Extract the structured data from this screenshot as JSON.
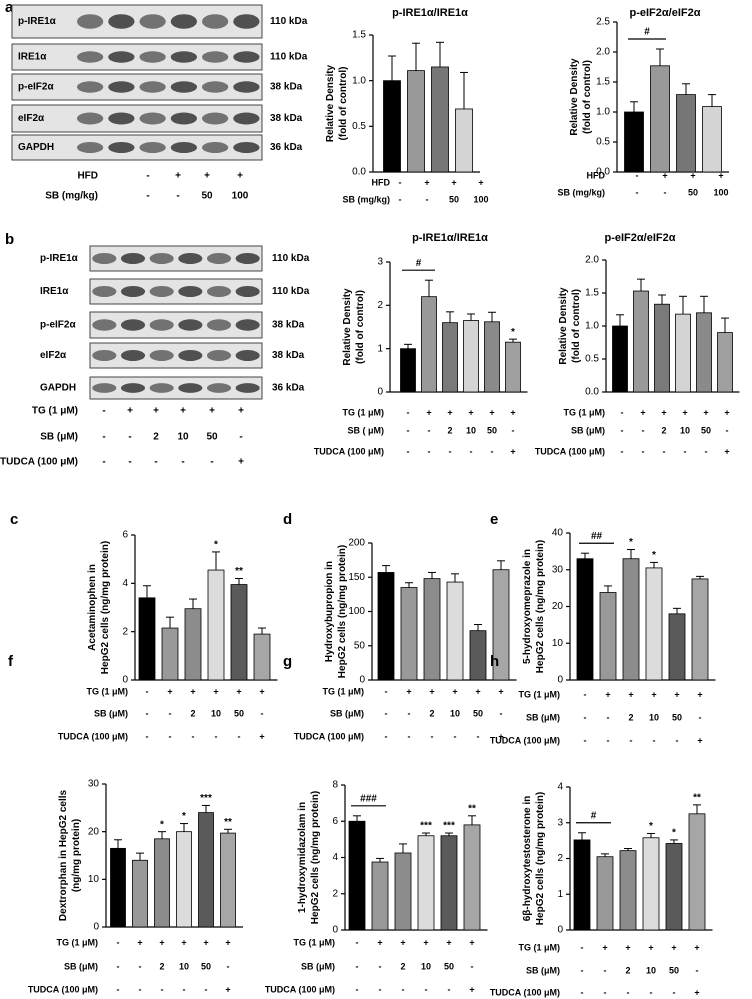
{
  "blots": [
    {
      "letter": "a",
      "rows": [
        {
          "label": "p-IRE1α",
          "size": "110 kDa"
        },
        {
          "label": "IRE1α",
          "size": "110 kDa"
        },
        {
          "label": "p-eIF2α",
          "size": "38 kDa"
        },
        {
          "label": "eIF2α",
          "size": "38 kDa"
        },
        {
          "label": "GAPDH",
          "size": "36 kDa"
        }
      ],
      "conditions": [
        {
          "label": "HFD",
          "values": [
            "-",
            "+",
            "+",
            "+"
          ]
        },
        {
          "label": "SB (mg/kg)",
          "values": [
            "-",
            "-",
            "50",
            "100"
          ]
        }
      ]
    },
    {
      "letter": "b",
      "rows": [
        {
          "label": "p-IRE1α",
          "size": "110 kDa"
        },
        {
          "label": "IRE1α",
          "size": "110 kDa"
        },
        {
          "label": "p-eIF2α",
          "size": "38 kDa"
        },
        {
          "label": "eIF2α",
          "size": "38 kDa"
        },
        {
          "label": "GAPDH",
          "size": "36 kDa"
        }
      ],
      "conditions": [
        {
          "label": "TG (1 μM)",
          "values": [
            "-",
            "+",
            "+",
            "+",
            "+",
            "+"
          ]
        },
        {
          "label": "SB (μM)",
          "values": [
            "-",
            "-",
            "2",
            "10",
            "50",
            "-"
          ]
        },
        {
          "label": "TUDCA (100 μM)",
          "values": [
            "-",
            "-",
            "-",
            "-",
            "-",
            "+"
          ]
        }
      ]
    }
  ],
  "chart_data": [
    {
      "type": "bar",
      "title": "p-IRE1α/IRE1α",
      "ylabel": [
        "Relative Density",
        "(fold of control)"
      ],
      "values": [
        1.0,
        1.11,
        1.15,
        0.69
      ],
      "errors": [
        0.27,
        0.3,
        0.27,
        0.4
      ],
      "colors": [
        "#000000",
        "#999999",
        "#777777",
        "#d4d4d4"
      ],
      "ylim": [
        0,
        1.5
      ],
      "yticks": [
        {
          "value": 0,
          "label": "0.0"
        },
        0.5,
        {
          "value": 1,
          "label": "1.0"
        },
        1.5
      ],
      "conditions": [
        {
          "label": "HFD",
          "values": [
            "-",
            "+",
            "+",
            "+"
          ]
        },
        {
          "label": "SB (mg/kg)",
          "values": [
            "-",
            "-",
            "50",
            "100"
          ]
        }
      ]
    },
    {
      "type": "bar",
      "title": "p-eIF2α/eIF2α",
      "ylabel": [
        "Relative Density",
        "(fold of control)"
      ],
      "values": [
        1.0,
        1.77,
        1.29,
        1.09
      ],
      "errors": [
        0.17,
        0.28,
        0.18,
        0.2
      ],
      "colors": [
        "#000000",
        "#999999",
        "#777777",
        "#d4d4d4"
      ],
      "ylim": [
        0,
        2.5
      ],
      "yticks": [
        {
          "value": 0,
          "label": "0.0"
        },
        0.5,
        {
          "value": 1,
          "label": "1.0"
        },
        1.5,
        {
          "value": 2,
          "label": "2.0"
        },
        2.5
      ],
      "bracket": "#",
      "conditions": [
        {
          "label": "HFD",
          "values": [
            "-",
            "+",
            "+",
            "+"
          ]
        },
        {
          "label": "SB (mg/kg)",
          "values": [
            "-",
            "-",
            "50",
            "100"
          ]
        }
      ]
    },
    {
      "type": "bar",
      "title": "p-IRE1α/IRE1α",
      "ylabel": [
        "Relative Density",
        "(fold of control)"
      ],
      "values": [
        1.0,
        2.2,
        1.6,
        1.65,
        1.62,
        1.15
      ],
      "errors": [
        0.1,
        0.38,
        0.25,
        0.15,
        0.22,
        0.07
      ],
      "colors": [
        "#000000",
        "#999999",
        "#7a7a7a",
        "#d4d4d4",
        "#8a8a8a",
        "#a0a0a0"
      ],
      "ylim": [
        0,
        3
      ],
      "yticks": [
        0,
        1,
        2,
        3
      ],
      "bracket": "#",
      "marks": [
        null,
        null,
        null,
        null,
        null,
        "*"
      ],
      "conditions": [
        {
          "label": "TG (1 μM)",
          "values": [
            "-",
            "+",
            "+",
            "+",
            "+",
            "+"
          ]
        },
        {
          "label": "SB ( μM)",
          "values": [
            "-",
            "-",
            "2",
            "10",
            "50",
            "-"
          ]
        },
        {
          "label": "TUDCA (100 μM)",
          "values": [
            "-",
            "-",
            "-",
            "-",
            "-",
            "+"
          ]
        }
      ]
    },
    {
      "type": "bar",
      "title": "p-eIF2α/eIF2α",
      "ylabel": [
        "Relative Density",
        "(fold of control)"
      ],
      "values": [
        1.0,
        1.53,
        1.33,
        1.18,
        1.2,
        0.9
      ],
      "errors": [
        0.17,
        0.18,
        0.14,
        0.27,
        0.25,
        0.22
      ],
      "colors": [
        "#000000",
        "#999999",
        "#7a7a7a",
        "#d4d4d4",
        "#8a8a8a",
        "#a0a0a0"
      ],
      "ylim": [
        0,
        2
      ],
      "yticks": [
        {
          "value": 0,
          "label": "0.0"
        },
        0.5,
        {
          "value": 1,
          "label": "1.0"
        },
        1.5,
        {
          "value": 2,
          "label": "2.0"
        }
      ],
      "conditions": [
        {
          "label": "TG (1 μM)",
          "values": [
            "-",
            "+",
            "+",
            "+",
            "+",
            "+"
          ]
        },
        {
          "label": "SB (μM)",
          "values": [
            "-",
            "-",
            "2",
            "10",
            "50",
            "-"
          ]
        },
        {
          "label": "TUDCA (100 μM)",
          "values": [
            "-",
            "-",
            "-",
            "-",
            "-",
            "+"
          ]
        }
      ]
    },
    {
      "type": "bar",
      "panel": "c",
      "ylabel": [
        "Acetaminophen in",
        "HepG2 cells (ng/mg protein)"
      ],
      "values": [
        3.4,
        2.15,
        2.95,
        4.55,
        3.95,
        1.9
      ],
      "errors": [
        0.5,
        0.45,
        0.4,
        0.75,
        0.25,
        0.25
      ],
      "colors": [
        "#000000",
        "#999999",
        "#8c8c8c",
        "#dcdcdc",
        "#5a5a5a",
        "#a6a6a6"
      ],
      "ylim": [
        0,
        6
      ],
      "yticks": [
        0,
        2,
        4,
        6
      ],
      "marks": [
        null,
        null,
        null,
        "*",
        "**",
        null
      ],
      "conditions": [
        {
          "label": "TG (1 μM)",
          "values": [
            "-",
            "+",
            "+",
            "+",
            "+",
            "+"
          ]
        },
        {
          "label": "SB (μM)",
          "values": [
            "-",
            "-",
            "2",
            "10",
            "50",
            "-"
          ]
        },
        {
          "label": "TUDCA (100 μM)",
          "values": [
            "-",
            "-",
            "-",
            "-",
            "-",
            "+"
          ]
        }
      ]
    },
    {
      "type": "bar",
      "panel": "d",
      "ylabel": [
        "Hydroxybupropion in",
        "HepG2 cells (ng/mg protein)"
      ],
      "values": [
        157,
        135,
        148,
        143,
        72,
        161
      ],
      "errors": [
        10,
        7,
        9,
        12,
        9,
        13
      ],
      "colors": [
        "#000000",
        "#999999",
        "#8c8c8c",
        "#dcdcdc",
        "#5a5a5a",
        "#a6a6a6"
      ],
      "ylim": [
        0,
        200
      ],
      "yticks": [
        0,
        50,
        100,
        150,
        200
      ],
      "conditions": [
        {
          "label": "TG (1 μM)",
          "values": [
            "-",
            "+",
            "+",
            "+",
            "+",
            "+"
          ]
        },
        {
          "label": "SB (μM)",
          "values": [
            "-",
            "-",
            "2",
            "10",
            "50",
            "-"
          ]
        },
        {
          "label": "TUDCA (100 μM)",
          "values": [
            "-",
            "-",
            "-",
            "-",
            "-",
            "+"
          ]
        }
      ]
    },
    {
      "type": "bar",
      "panel": "e",
      "ylabel": [
        "5-hydroxyomeprazole in",
        "HepG2 cells (ng/mg protein)"
      ],
      "values": [
        33,
        23.8,
        33,
        30.5,
        18,
        27.5
      ],
      "errors": [
        1.5,
        1.8,
        2.5,
        1.5,
        1.5,
        0.7
      ],
      "colors": [
        "#000000",
        "#999999",
        "#8c8c8c",
        "#dcdcdc",
        "#5a5a5a",
        "#a6a6a6"
      ],
      "ylim": [
        0,
        40
      ],
      "yticks": [
        0,
        10,
        20,
        30,
        40
      ],
      "bracket": "##",
      "marks": [
        null,
        null,
        "*",
        "*",
        null,
        null
      ],
      "conditions": [
        {
          "label": "TG (1 μM)",
          "values": [
            "-",
            "+",
            "+",
            "+",
            "+",
            "+"
          ]
        },
        {
          "label": "SB (μM)",
          "values": [
            "-",
            "-",
            "2",
            "10",
            "50",
            "-"
          ]
        },
        {
          "label": "TUDCA (100 μM)",
          "values": [
            "-",
            "-",
            "-",
            "-",
            "-",
            "+"
          ]
        }
      ]
    },
    {
      "type": "bar",
      "panel": "f",
      "ylabel": [
        "Dextrorphan in HepG2 cells",
        "(ng/mg protein)"
      ],
      "values": [
        16.5,
        14,
        18.5,
        20,
        24,
        19.7
      ],
      "errors": [
        1.8,
        1.5,
        1.5,
        1.7,
        1.5,
        0.8
      ],
      "colors": [
        "#000000",
        "#999999",
        "#8c8c8c",
        "#dcdcdc",
        "#5a5a5a",
        "#a6a6a6"
      ],
      "ylim": [
        0,
        30
      ],
      "yticks": [
        0,
        10,
        20,
        30
      ],
      "marks": [
        null,
        null,
        "*",
        "*",
        "***",
        "**"
      ],
      "conditions": [
        {
          "label": "TG (1 μM)",
          "values": [
            "-",
            "+",
            "+",
            "+",
            "+",
            "+"
          ]
        },
        {
          "label": "SB (μM)",
          "values": [
            "-",
            "-",
            "2",
            "10",
            "50",
            "-"
          ]
        },
        {
          "label": "TUDCA (100 μM)",
          "values": [
            "-",
            "-",
            "-",
            "-",
            "-",
            "+"
          ]
        }
      ]
    },
    {
      "type": "bar",
      "panel": "g",
      "ylabel": [
        "1-hydroxymidazolam in",
        "HepG2 cells (ng/mg protein)"
      ],
      "values": [
        6.0,
        3.75,
        4.25,
        5.2,
        5.2,
        5.8
      ],
      "errors": [
        0.3,
        0.2,
        0.5,
        0.15,
        0.15,
        0.5
      ],
      "colors": [
        "#000000",
        "#999999",
        "#8c8c8c",
        "#dcdcdc",
        "#5a5a5a",
        "#a6a6a6"
      ],
      "ylim": [
        0,
        8
      ],
      "yticks": [
        0,
        2,
        4,
        6,
        8
      ],
      "bracket": "###",
      "marks": [
        null,
        null,
        null,
        "***",
        "***",
        "**"
      ],
      "conditions": [
        {
          "label": "TG (1 μM)",
          "values": [
            "-",
            "+",
            "+",
            "+",
            "+",
            "+"
          ]
        },
        {
          "label": "SB (μM)",
          "values": [
            "-",
            "-",
            "2",
            "10",
            "50",
            "-"
          ]
        },
        {
          "label": "TUDCA (100 μM)",
          "values": [
            "-",
            "-",
            "-",
            "-",
            "-",
            "+"
          ]
        }
      ]
    },
    {
      "type": "bar",
      "panel": "h",
      "ylabel": [
        "6β-hydroxytestosterone in",
        "HepG2 cells (ng/mg protein)"
      ],
      "values": [
        2.52,
        2.05,
        2.22,
        2.58,
        2.42,
        3.25
      ],
      "errors": [
        0.2,
        0.08,
        0.06,
        0.12,
        0.1,
        0.25
      ],
      "colors": [
        "#000000",
        "#999999",
        "#8c8c8c",
        "#dcdcdc",
        "#5a5a5a",
        "#a6a6a6"
      ],
      "ylim": [
        0,
        4
      ],
      "yticks": [
        0,
        1,
        2,
        3,
        4
      ],
      "bracket": "#",
      "marks": [
        null,
        null,
        null,
        "*",
        "*",
        "**"
      ],
      "conditions": [
        {
          "label": "TG (1 μM)",
          "values": [
            "-",
            "+",
            "+",
            "+",
            "+",
            "+"
          ]
        },
        {
          "label": "SB (μM)",
          "values": [
            "-",
            "-",
            "2",
            "10",
            "50",
            "-"
          ]
        },
        {
          "label": "TUDCA (100 μM)",
          "values": [
            "-",
            "-",
            "-",
            "-",
            "-",
            "+"
          ]
        }
      ]
    }
  ]
}
